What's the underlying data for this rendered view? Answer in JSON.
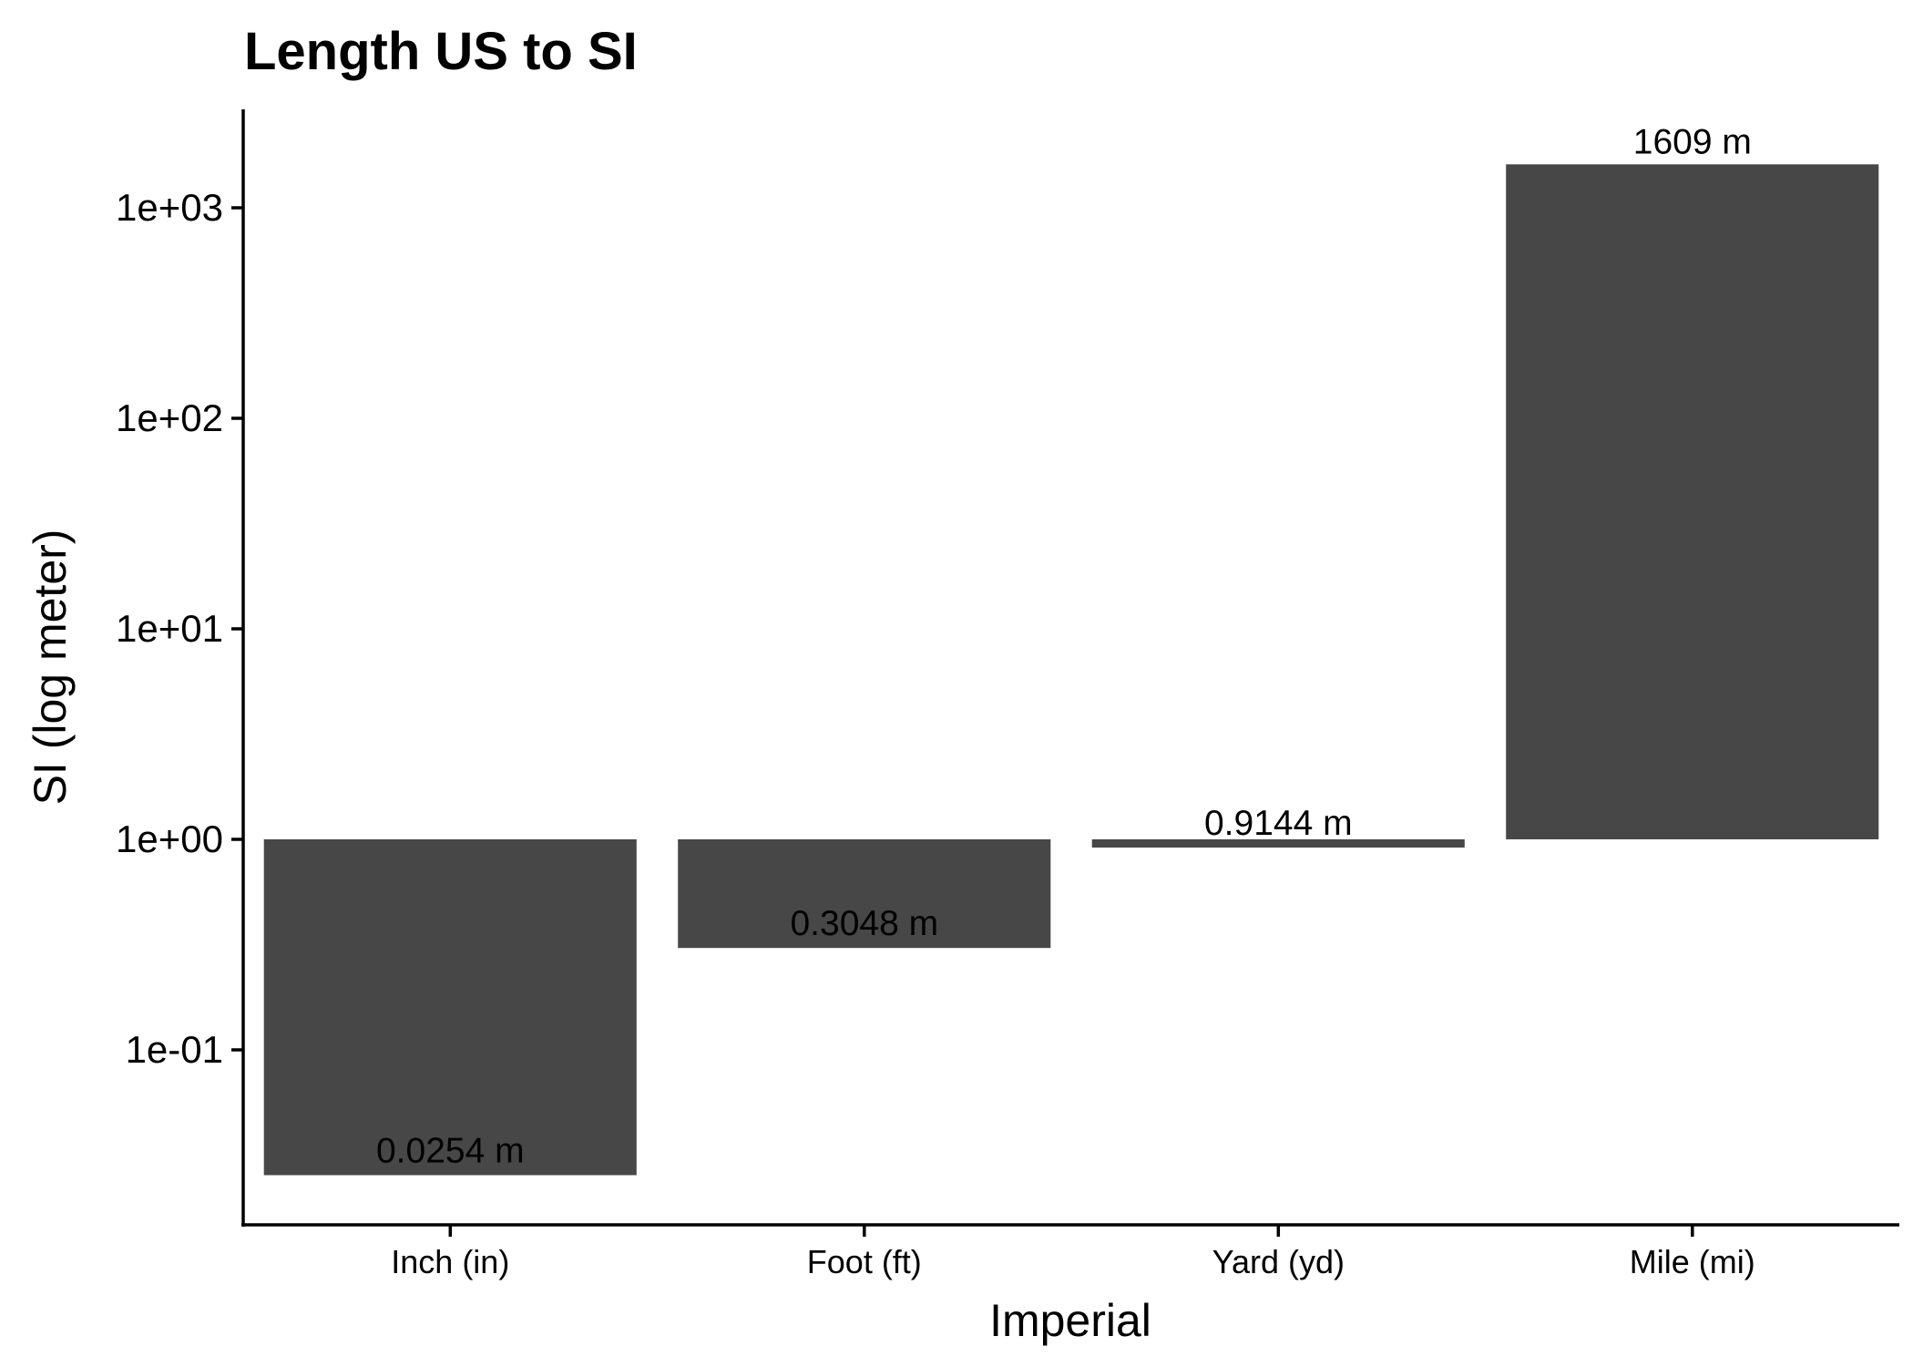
{
  "chart_data": {
    "type": "bar",
    "title": "Length US to SI",
    "xlabel": "Imperial",
    "ylabel": "SI (log meter)",
    "y_scale": "log10",
    "baseline": 1,
    "ylim": [
      0.01,
      2600
    ],
    "y_ticks": [
      {
        "value": 0.1,
        "label": "1e-01"
      },
      {
        "value": 1,
        "label": "1e+00"
      },
      {
        "value": 10,
        "label": "1e+01"
      },
      {
        "value": 100,
        "label": "1e+02"
      },
      {
        "value": 1000,
        "label": "1e+03"
      }
    ],
    "categories": [
      "Inch (in)",
      "Foot (ft)",
      "Yard (yd)",
      "Mile (mi)"
    ],
    "values": [
      0.0254,
      0.3048,
      0.9144,
      1609
    ],
    "data_labels": [
      "0.0254 m",
      "0.3048 m",
      "0.9144 m",
      "1609 m"
    ],
    "bar_color": "#474747",
    "grid": false,
    "legend": "none"
  }
}
